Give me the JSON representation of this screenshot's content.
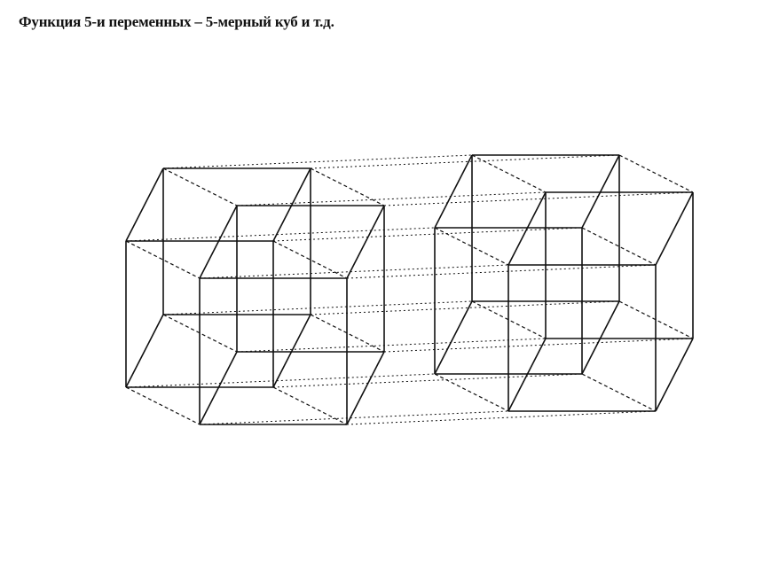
{
  "slide": {
    "title": "Функция 5-и переменных – 5-мерный куб и т.д."
  },
  "diagram": {
    "subject": "5-dimensional hypercube drawn as two 4-dimensional tesseracts joined by dotted edges",
    "components": [
      {
        "name": "left-tesseract",
        "kind": "tesseract"
      },
      {
        "name": "right-tesseract",
        "kind": "tesseract"
      }
    ],
    "edge_styles": {
      "cube_edges": "solid",
      "tesseract_links": "dashed",
      "fifth_dimension_links": "dotted"
    },
    "colors": {
      "line": "#111111",
      "background": "#ffffff"
    }
  }
}
